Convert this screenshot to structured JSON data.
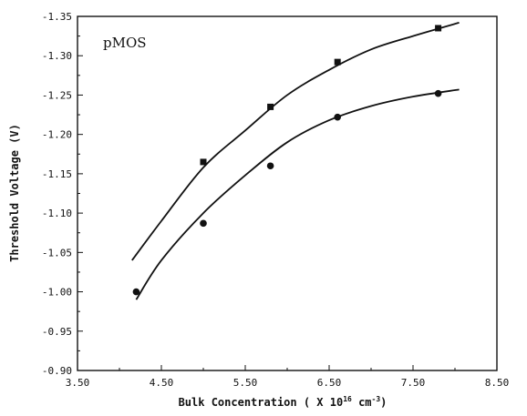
{
  "chart_data": {
    "type": "scatter",
    "annotation": "pMOS",
    "ylabel": "Threshold Voltage (V)",
    "xlabel_main": "Bulk Concentration ( X 10",
    "xlabel_exp": "16",
    "xlabel_unit": " cm",
    "xlabel_unit_exp": "-3",
    "xlabel_close": ")",
    "xlim": [
      3.5,
      8.5
    ],
    "ylim": [
      -0.9,
      -1.35
    ],
    "x_ticks": [
      "3.50",
      "4.50",
      "5.50",
      "6.50",
      "7.50",
      "8.50"
    ],
    "x_tick_values": [
      3.5,
      4.5,
      5.5,
      6.5,
      7.5,
      8.5
    ],
    "y_ticks": [
      "-1.35",
      "-1.30",
      "-1.25",
      "-1.20",
      "-1.15",
      "-1.10",
      "-1.05",
      "-1.00",
      "-0.95",
      "-0.90"
    ],
    "y_tick_values": [
      -1.35,
      -1.3,
      -1.25,
      -1.2,
      -1.15,
      -1.1,
      -1.05,
      -1.0,
      -0.95,
      -0.9
    ],
    "grid": false,
    "series": [
      {
        "marker": "square",
        "points": [
          [
            5.0,
            -1.165
          ],
          [
            5.8,
            -1.235
          ],
          [
            6.6,
            -1.292
          ],
          [
            7.8,
            -1.335
          ]
        ],
        "fit_curve": [
          [
            4.15,
            -1.04
          ],
          [
            4.5,
            -1.09
          ],
          [
            5.0,
            -1.158
          ],
          [
            5.5,
            -1.205
          ],
          [
            6.0,
            -1.25
          ],
          [
            6.5,
            -1.282
          ],
          [
            7.0,
            -1.308
          ],
          [
            7.5,
            -1.325
          ],
          [
            8.05,
            -1.342
          ]
        ]
      },
      {
        "marker": "circle",
        "points": [
          [
            4.2,
            -1.0
          ],
          [
            5.0,
            -1.087
          ],
          [
            5.8,
            -1.16
          ],
          [
            6.6,
            -1.222
          ],
          [
            7.8,
            -1.252
          ]
        ],
        "fit_curve": [
          [
            4.2,
            -0.99
          ],
          [
            4.5,
            -1.04
          ],
          [
            5.0,
            -1.1
          ],
          [
            5.5,
            -1.148
          ],
          [
            6.0,
            -1.19
          ],
          [
            6.5,
            -1.218
          ],
          [
            7.0,
            -1.236
          ],
          [
            7.5,
            -1.248
          ],
          [
            8.05,
            -1.257
          ]
        ]
      }
    ],
    "colors": {
      "ink": "#111111",
      "background": "#ffffff"
    }
  }
}
